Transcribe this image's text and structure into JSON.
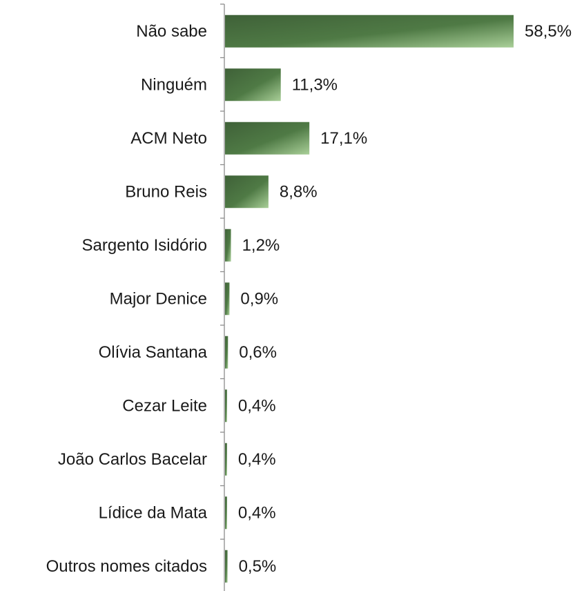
{
  "chart_data": {
    "type": "bar",
    "orientation": "horizontal",
    "categories": [
      "Não sabe",
      "Ninguém",
      "ACM Neto",
      "Bruno Reis",
      "Sargento Isidório",
      "Major Denice",
      "Olívia Santana",
      "Cezar Leite",
      "João Carlos Bacelar",
      "Lídice da Mata",
      "Outros nomes citados"
    ],
    "values": [
      58.5,
      11.3,
      17.1,
      8.8,
      1.2,
      0.9,
      0.6,
      0.4,
      0.4,
      0.4,
      0.5
    ],
    "value_labels": [
      "58,5%",
      "11,3%",
      "17,1%",
      "8,8%",
      "1,2%",
      "0,9%",
      "0,6%",
      "0,4%",
      "0,4%",
      "0,4%",
      "0,5%"
    ],
    "title": "",
    "xlabel": "",
    "ylabel": "",
    "xlim": [
      0,
      58.5
    ],
    "grid": false,
    "legend": "none",
    "colors": {
      "bar_dark": "#3f6138",
      "bar_mid": "#4f7a45",
      "bar_light": "#a9cf98",
      "axis": "#8c8c8c",
      "text": "#1a1a1a"
    }
  }
}
